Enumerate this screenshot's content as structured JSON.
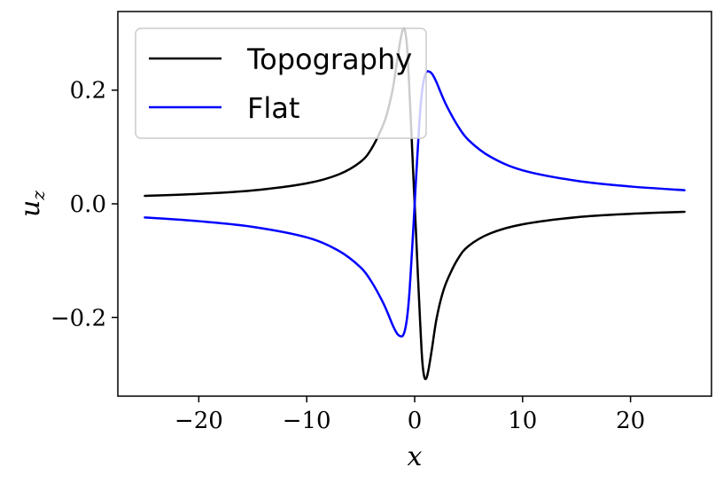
{
  "chart_data": {
    "type": "line",
    "title": "",
    "xlabel": "x",
    "ylabel": "u",
    "ylabel_sub": "z",
    "xlim": [
      -27.5,
      27.5
    ],
    "ylim": [
      -0.3383,
      0.3383
    ],
    "xticks": [
      -20,
      -10,
      0,
      10,
      20
    ],
    "xtick_labels": [
      "−20",
      "−10",
      "0",
      "10",
      "20"
    ],
    "yticks": [
      -0.2,
      0.0,
      0.2
    ],
    "ytick_labels": [
      "−0.2",
      "0.0",
      "0.2"
    ],
    "grid": false,
    "legend_position": "top-left",
    "series": [
      {
        "name": "Topography",
        "color": "#000000",
        "x": [
          -25,
          -20,
          -15,
          -10,
          -7,
          -5,
          -4,
          -3,
          -2.5,
          -2,
          -1.6,
          -1.3,
          -1.1,
          -0.9,
          -0.7,
          -0.5,
          -0.3,
          -0.1,
          0,
          0.1,
          0.3,
          0.5,
          0.7,
          0.9,
          1.1,
          1.3,
          1.6,
          2,
          2.5,
          3,
          4,
          5,
          7,
          10,
          15,
          20,
          25
        ],
        "y": [
          0.014,
          0.0175,
          0.0235,
          0.036,
          0.052,
          0.074,
          0.097,
          0.135,
          0.163,
          0.205,
          0.255,
          0.29,
          0.306,
          0.305,
          0.275,
          0.205,
          0.125,
          0.04,
          0.0,
          -0.04,
          -0.125,
          -0.205,
          -0.275,
          -0.305,
          -0.306,
          -0.29,
          -0.255,
          -0.205,
          -0.163,
          -0.135,
          -0.097,
          -0.074,
          -0.052,
          -0.036,
          -0.0235,
          -0.0175,
          -0.014
        ]
      },
      {
        "name": "Flat",
        "color": "#0000ff",
        "x": [
          -25,
          -20,
          -15,
          -10,
          -7,
          -5,
          -4,
          -3,
          -2.5,
          -2,
          -1.6,
          -1.3,
          -1.1,
          -0.9,
          -0.7,
          -0.5,
          -0.3,
          -0.1,
          0,
          0.1,
          0.3,
          0.5,
          0.7,
          0.9,
          1.1,
          1.3,
          1.6,
          2,
          2.5,
          3,
          4,
          5,
          7,
          10,
          15,
          20,
          25
        ],
        "y": [
          -0.024,
          -0.0305,
          -0.0405,
          -0.059,
          -0.083,
          -0.112,
          -0.137,
          -0.171,
          -0.192,
          -0.215,
          -0.229,
          -0.233,
          -0.232,
          -0.222,
          -0.2,
          -0.16,
          -0.1,
          -0.035,
          0.0,
          0.035,
          0.1,
          0.16,
          0.2,
          0.222,
          0.232,
          0.233,
          0.229,
          0.215,
          0.192,
          0.171,
          0.137,
          0.112,
          0.083,
          0.059,
          0.0405,
          0.0305,
          0.024
        ]
      }
    ]
  }
}
